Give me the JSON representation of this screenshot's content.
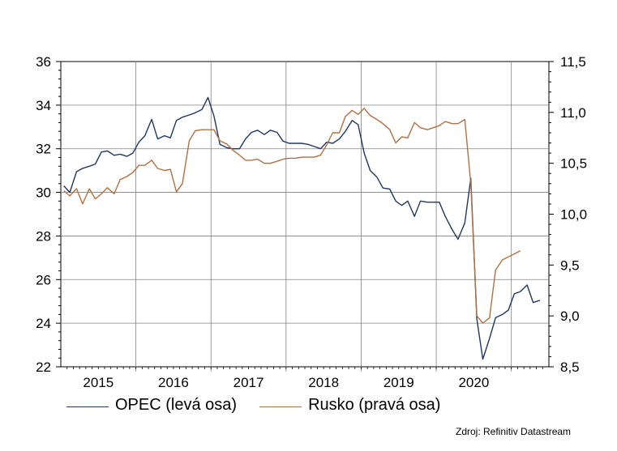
{
  "chart_data": {
    "type": "line",
    "title": "",
    "xlabel": "",
    "ylabel_left": "",
    "ylabel_right": "",
    "x_categories": [
      "2015",
      "2016",
      "2017",
      "2018",
      "2019",
      "2020"
    ],
    "x_range": [
      2014.5,
      2021.0
    ],
    "y_left": {
      "range": [
        22,
        36
      ],
      "ticks": [
        "22",
        "24",
        "26",
        "28",
        "30",
        "32",
        "34",
        "36"
      ]
    },
    "y_right": {
      "range": [
        8.5,
        11.5
      ],
      "ticks": [
        "8,5",
        "9,0",
        "9,5",
        "10,0",
        "10,5",
        "11,0",
        "11,5"
      ]
    },
    "grid": true,
    "legend_position": "bottom",
    "series": [
      {
        "name": "OPEC (levá osa)",
        "axis": "left",
        "color": "#1f3864",
        "points": [
          [
            2014.54,
            30.3
          ],
          [
            2014.62,
            30.0
          ],
          [
            2014.71,
            30.95
          ],
          [
            2014.79,
            31.1
          ],
          [
            2014.88,
            31.2
          ],
          [
            2014.96,
            31.3
          ],
          [
            2015.04,
            31.85
          ],
          [
            2015.12,
            31.9
          ],
          [
            2015.21,
            31.7
          ],
          [
            2015.29,
            31.75
          ],
          [
            2015.38,
            31.65
          ],
          [
            2015.46,
            31.8
          ],
          [
            2015.54,
            32.3
          ],
          [
            2015.62,
            32.6
          ],
          [
            2015.71,
            33.35
          ],
          [
            2015.79,
            32.45
          ],
          [
            2015.88,
            32.6
          ],
          [
            2015.96,
            32.5
          ],
          [
            2016.04,
            33.3
          ],
          [
            2016.12,
            33.45
          ],
          [
            2016.21,
            33.55
          ],
          [
            2016.29,
            33.65
          ],
          [
            2016.38,
            33.8
          ],
          [
            2016.46,
            34.35
          ],
          [
            2016.54,
            33.5
          ],
          [
            2016.62,
            32.2
          ],
          [
            2016.71,
            32.05
          ],
          [
            2016.79,
            32.0
          ],
          [
            2016.88,
            32.0
          ],
          [
            2016.96,
            32.45
          ],
          [
            2017.04,
            32.75
          ],
          [
            2017.12,
            32.85
          ],
          [
            2017.21,
            32.65
          ],
          [
            2017.29,
            32.85
          ],
          [
            2017.38,
            32.75
          ],
          [
            2017.46,
            32.35
          ],
          [
            2017.54,
            32.25
          ],
          [
            2017.62,
            32.25
          ],
          [
            2017.71,
            32.25
          ],
          [
            2017.79,
            32.2
          ],
          [
            2017.88,
            32.1
          ],
          [
            2017.96,
            32.0
          ],
          [
            2018.04,
            32.3
          ],
          [
            2018.12,
            32.25
          ],
          [
            2018.21,
            32.45
          ],
          [
            2018.29,
            32.8
          ],
          [
            2018.38,
            33.3
          ],
          [
            2018.46,
            33.1
          ],
          [
            2018.54,
            31.8
          ],
          [
            2018.62,
            31.0
          ],
          [
            2018.71,
            30.7
          ],
          [
            2018.79,
            30.2
          ],
          [
            2018.88,
            30.15
          ],
          [
            2018.96,
            29.6
          ],
          [
            2019.04,
            29.4
          ],
          [
            2019.12,
            29.6
          ],
          [
            2019.21,
            28.9
          ],
          [
            2019.29,
            29.6
          ],
          [
            2019.38,
            29.55
          ],
          [
            2019.46,
            29.55
          ],
          [
            2019.54,
            29.55
          ],
          [
            2019.62,
            28.9
          ],
          [
            2019.71,
            28.3
          ],
          [
            2019.79,
            27.85
          ],
          [
            2019.88,
            28.6
          ],
          [
            2019.96,
            30.65
          ],
          [
            2020.04,
            24.2
          ],
          [
            2020.12,
            22.35
          ],
          [
            2020.21,
            23.3
          ],
          [
            2020.29,
            24.25
          ],
          [
            2020.38,
            24.4
          ],
          [
            2020.46,
            24.6
          ],
          [
            2020.54,
            25.35
          ],
          [
            2020.62,
            25.45
          ],
          [
            2020.71,
            25.75
          ],
          [
            2020.79,
            24.95
          ],
          [
            2020.88,
            25.05
          ]
        ]
      },
      {
        "name": "Rusko (pravá osa)",
        "axis": "right",
        "color": "#b07040",
        "points": [
          [
            2014.54,
            10.23
          ],
          [
            2014.62,
            10.18
          ],
          [
            2014.71,
            10.25
          ],
          [
            2014.79,
            10.1
          ],
          [
            2014.88,
            10.25
          ],
          [
            2014.96,
            10.15
          ],
          [
            2015.04,
            10.2
          ],
          [
            2015.12,
            10.26
          ],
          [
            2015.21,
            10.2
          ],
          [
            2015.29,
            10.34
          ],
          [
            2015.38,
            10.37
          ],
          [
            2015.46,
            10.41
          ],
          [
            2015.54,
            10.48
          ],
          [
            2015.62,
            10.48
          ],
          [
            2015.71,
            10.53
          ],
          [
            2015.79,
            10.45
          ],
          [
            2015.88,
            10.43
          ],
          [
            2015.96,
            10.44
          ],
          [
            2016.04,
            10.22
          ],
          [
            2016.12,
            10.3
          ],
          [
            2016.21,
            10.72
          ],
          [
            2016.29,
            10.82
          ],
          [
            2016.38,
            10.83
          ],
          [
            2016.46,
            10.83
          ],
          [
            2016.54,
            10.83
          ],
          [
            2016.62,
            10.72
          ],
          [
            2016.71,
            10.69
          ],
          [
            2016.79,
            10.63
          ],
          [
            2016.88,
            10.58
          ],
          [
            2016.96,
            10.53
          ],
          [
            2017.04,
            10.53
          ],
          [
            2017.12,
            10.54
          ],
          [
            2017.21,
            10.5
          ],
          [
            2017.29,
            10.5
          ],
          [
            2017.38,
            10.52
          ],
          [
            2017.46,
            10.54
          ],
          [
            2017.54,
            10.55
          ],
          [
            2017.62,
            10.55
          ],
          [
            2017.71,
            10.56
          ],
          [
            2017.79,
            10.56
          ],
          [
            2017.88,
            10.56
          ],
          [
            2017.96,
            10.58
          ],
          [
            2018.04,
            10.68
          ],
          [
            2018.12,
            10.8
          ],
          [
            2018.21,
            10.8
          ],
          [
            2018.29,
            10.96
          ],
          [
            2018.38,
            11.02
          ],
          [
            2018.46,
            10.98
          ],
          [
            2018.54,
            11.04
          ],
          [
            2018.62,
            10.97
          ],
          [
            2018.71,
            10.93
          ],
          [
            2018.79,
            10.89
          ],
          [
            2018.88,
            10.83
          ],
          [
            2018.96,
            10.7
          ],
          [
            2019.04,
            10.76
          ],
          [
            2019.12,
            10.75
          ],
          [
            2019.21,
            10.9
          ],
          [
            2019.29,
            10.85
          ],
          [
            2019.38,
            10.83
          ],
          [
            2019.46,
            10.85
          ],
          [
            2019.54,
            10.87
          ],
          [
            2019.62,
            10.91
          ],
          [
            2019.71,
            10.89
          ],
          [
            2019.79,
            10.89
          ],
          [
            2019.88,
            10.93
          ],
          [
            2019.96,
            10.3
          ],
          [
            2020.04,
            9.0
          ],
          [
            2020.12,
            8.93
          ],
          [
            2020.21,
            8.98
          ],
          [
            2020.29,
            9.45
          ],
          [
            2020.38,
            9.55
          ],
          [
            2020.46,
            9.58
          ],
          [
            2020.54,
            9.61
          ],
          [
            2020.62,
            9.64
          ]
        ]
      }
    ]
  },
  "source_text": "Zdroj: Refinitiv Datastream"
}
